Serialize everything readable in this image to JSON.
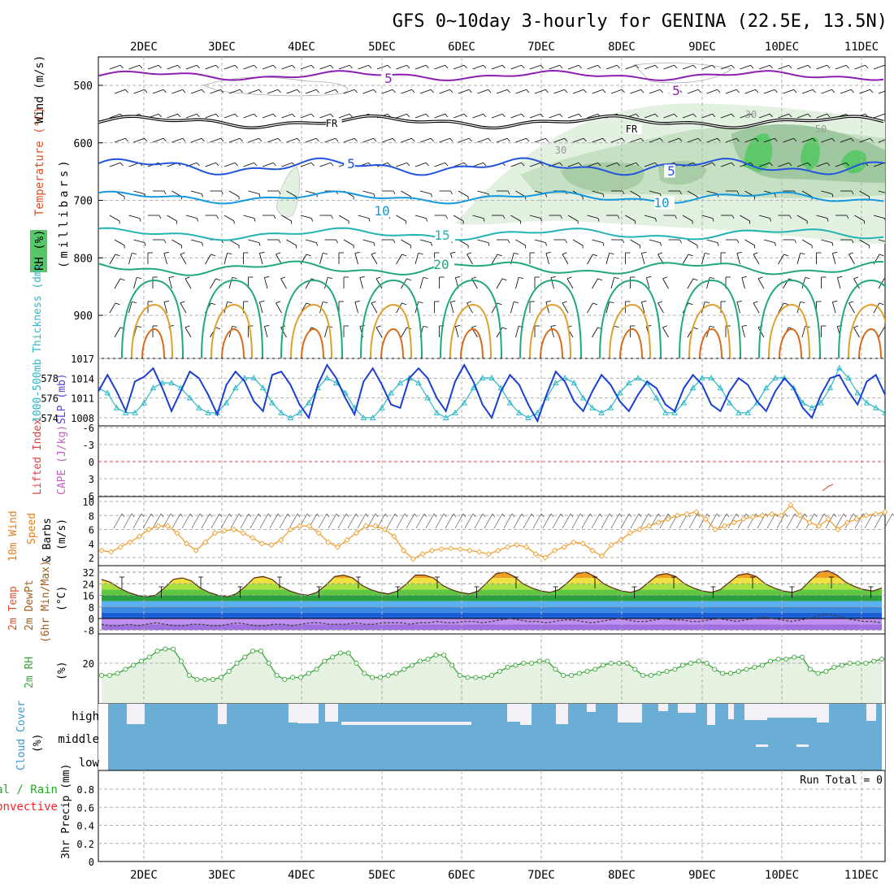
{
  "title": "GFS 0~10day 3-hourly for GENINA (22.5E, 13.5N)",
  "dates": [
    "2DEC",
    "3DEC",
    "4DEC",
    "5DEC",
    "6DEC",
    "7DEC",
    "8DEC",
    "9DEC",
    "10DEC",
    "11DEC"
  ],
  "colors": {
    "rh_green": "#56c766",
    "rh_light": "#dcefdc",
    "rh_mid": "#b8d8b8",
    "temp_purple": "#8a1fb0",
    "temp_black": "#000000",
    "temp_blue": "#2255dd",
    "temp_cyan": "#1499e0",
    "temp_teal": "#22b4b4",
    "temp_green": "#22a87c",
    "temp_orange": "#e0a030",
    "temp_darkorange": "#d86a1a",
    "slp": "#1b3fcf",
    "thickness": "#2ab8c8",
    "wind": "#f0a030",
    "rh2m": "#3aa83a",
    "cloud": "#6aaed6",
    "precip_total": "#22aa22",
    "precip_conv": "#ff2020"
  },
  "panels": {
    "upper": {
      "ylabel_wind": "Wind (m/s)",
      "ylabel_temp": "Temperature (°C)",
      "ylabel_rh": "RH (%)",
      "ylabel_p": "(millibars)",
      "yticks": [
        "500",
        "600",
        "700",
        "800",
        "900"
      ],
      "contour_labels": [
        {
          "text": "5",
          "color": "#8a1fb0"
        },
        {
          "text": "5",
          "color": "#8a1fb0"
        },
        {
          "text": "FR",
          "color": "#000000"
        },
        {
          "text": "FR",
          "color": "#000000"
        },
        {
          "text": "5",
          "color": "#2255dd"
        },
        {
          "text": "5",
          "color": "#2255dd"
        },
        {
          "text": "10",
          "color": "#1499e0"
        },
        {
          "text": "10",
          "color": "#1499e0"
        },
        {
          "text": "15",
          "color": "#22b4b4"
        },
        {
          "text": "20",
          "color": "#22a87c"
        },
        {
          "text": "30",
          "color": "#999999"
        },
        {
          "text": "30",
          "color": "#999999"
        },
        {
          "text": "50",
          "color": "#999999"
        }
      ]
    },
    "slp": {
      "ylabel_left": "1000-500mb Thickness (dm)",
      "ylabel_right": "SLP (mb)",
      "left_ticks": [
        "578",
        "576",
        "574"
      ],
      "right_ticks": [
        "1017",
        "1014",
        "1011",
        "1008"
      ]
    },
    "cape": {
      "ylabel_li": "Lifted Index",
      "ylabel_cape": "CAPE (J/kg)",
      "yticks": [
        "-6",
        "-3",
        "0",
        "3",
        "6"
      ]
    },
    "wind10": {
      "ylabel1": "10m Wind",
      "ylabel2": "Speed",
      "ylabel3": "& Barbs",
      "unit": "(m/s)",
      "yticks": [
        "10",
        "8",
        "6",
        "4",
        "2"
      ]
    },
    "temp2m": {
      "ylabel1": "2m Temp",
      "ylabel2": "2m DewPt",
      "ylabel3": "(6hr Min/Max)",
      "unit": "(°C)",
      "yticks": [
        "32",
        "24",
        "16",
        "8",
        "0",
        "-8"
      ]
    },
    "rh2m": {
      "ylabel": "2m RH",
      "unit": "(%)",
      "yticks": [
        "20"
      ]
    },
    "cloud": {
      "ylabel": "Cloud Cover",
      "unit": "(%)",
      "levels": [
        "high",
        "middle",
        "low"
      ]
    },
    "precip": {
      "ylabel_total": "Total / Rain",
      "ylabel_conv": "Convective",
      "ylabel": "3hr Precip (mm)",
      "yticks": [
        "0.8",
        "0.6",
        "0.4",
        "0.2",
        "0"
      ],
      "run_total": "Run Total = 0"
    }
  },
  "chart_data": [
    {
      "type": "line",
      "title": "1000-500mb Thickness (dm) / SLP (mb)",
      "series": [
        {
          "name": "SLP (mb)",
          "values": [
            1012,
            1014.5,
            1012,
            1009,
            1013.5,
            1014.2,
            1015.5,
            1012.5,
            1009,
            1012,
            1015,
            1014,
            1011.5,
            1008.5,
            1013,
            1015,
            1013.5,
            1010.5,
            1009,
            1014.5,
            1015,
            1013,
            1010,
            1008,
            1013,
            1016,
            1014,
            1011,
            1008.5,
            1013.5,
            1015.5,
            1013,
            1010,
            1009.5,
            1014,
            1015.5,
            1014,
            1011,
            1009,
            1013.5,
            1016,
            1013.5,
            1010,
            1008,
            1012,
            1014.5,
            1013,
            1010,
            1007.5,
            1011.5,
            1015,
            1013.5,
            1010.5,
            1009,
            1012,
            1014.5,
            1013,
            1010.5,
            1009,
            1011.5,
            1013.5,
            1012.5,
            1010,
            1009,
            1012.5,
            1014.5,
            1013,
            1010,
            1009,
            1012,
            1014,
            1013,
            1010.5,
            1009,
            1012,
            1014,
            1012.5,
            1009.5,
            1008,
            1011.5,
            1014,
            1014.5,
            1012,
            1010,
            1013.5,
            1014.5,
            1011.5
          ]
        },
        {
          "name": "Thickness (dm)",
          "values": [
            577,
            576.5,
            575,
            574.5,
            574.5,
            575.5,
            577,
            577.5,
            577.5,
            577,
            576,
            575,
            574.5,
            574.5,
            575.5,
            577,
            578,
            578,
            577,
            575.5,
            574.5,
            574,
            574.5,
            575.5,
            577,
            578,
            577.5,
            576.5,
            575,
            574,
            574,
            575,
            576.5,
            577.5,
            578,
            577.5,
            576,
            574.5,
            574,
            574.5,
            575.5,
            577,
            578,
            578,
            577,
            575.5,
            574.5,
            574,
            574.5,
            576,
            577.5,
            578,
            577.5,
            576,
            575,
            574.5,
            575,
            576.5,
            577.5,
            578,
            577.5,
            576,
            574.5,
            574.5,
            575.5,
            577,
            578,
            578,
            577,
            575.5,
            574.5,
            574.5,
            575.5,
            577,
            578,
            578,
            577,
            575.5,
            575,
            575.5,
            577,
            579,
            578,
            576.5,
            575.5,
            575,
            574.5
          ]
        }
      ]
    },
    {
      "type": "line",
      "title": "10m Wind Speed (m/s)",
      "series": [
        {
          "name": "Speed",
          "values": [
            3,
            2.8,
            3.5,
            4.2,
            5,
            6,
            6.5,
            6.5,
            5.5,
            4,
            3,
            4.2,
            5.5,
            5.8,
            6,
            5.5,
            4.8,
            4,
            3.8,
            4.5,
            6,
            6.5,
            6.5,
            5.5,
            4.2,
            3.5,
            4.5,
            5.5,
            6.5,
            6.5,
            6,
            5,
            3,
            1.8,
            2.5,
            3,
            3.2,
            3.3,
            3.2,
            3,
            2.8,
            2.5,
            3,
            3.5,
            3.8,
            3.5,
            2.5,
            2,
            3,
            3.5,
            4.2,
            4,
            3,
            2.2,
            3.8,
            4.5,
            5.5,
            6,
            6.5,
            7,
            7.5,
            8,
            8.2,
            8.5,
            7.5,
            6,
            6.5,
            7,
            7.5,
            7.8,
            8,
            8.2,
            8,
            9.5,
            8,
            7,
            6.5,
            7.5,
            6,
            7,
            7.5,
            8,
            8.2,
            8.5
          ]
        }
      ]
    },
    {
      "type": "area",
      "title": "2m Temp (°C)",
      "series": [
        {
          "name": "2m Temp",
          "values": [
            27,
            25,
            21,
            18,
            16,
            15,
            16,
            21,
            27,
            28,
            26,
            21,
            18,
            16,
            15,
            17,
            22,
            28,
            29,
            27,
            22,
            19,
            17,
            16,
            18,
            23,
            29,
            30,
            28,
            23,
            20,
            18,
            17,
            19,
            24,
            30,
            30,
            28,
            23,
            20,
            18,
            17,
            19,
            25,
            31,
            32,
            29,
            24,
            21,
            19,
            18,
            20,
            25,
            31,
            32,
            29,
            24,
            21,
            19,
            18,
            20,
            25,
            30,
            31,
            29,
            24,
            21,
            19,
            18,
            20,
            25,
            30,
            31,
            29,
            24,
            21,
            19,
            18,
            20,
            26,
            32,
            33,
            30,
            25,
            22,
            20,
            19,
            21
          ]
        },
        {
          "name": "2m DewPt",
          "values": [
            -4,
            -5,
            -5,
            -4,
            -5,
            -4,
            -3,
            -4,
            -5,
            -5,
            -4,
            -4,
            -5,
            -5,
            -4,
            -3,
            -4,
            -5,
            -5,
            -4,
            -4,
            -5,
            -4,
            -3,
            -3,
            -4,
            -4,
            -4,
            -3,
            -4,
            -4,
            -3,
            -3,
            -3,
            -4,
            -3,
            -3,
            -2,
            -3,
            -3,
            -2,
            -2,
            -3,
            -2,
            -1,
            0,
            -1,
            -2,
            -2,
            -3,
            -2,
            -1,
            -1,
            -2,
            -3,
            -2,
            -1,
            0,
            -1,
            -2,
            -2,
            -1,
            0,
            -1,
            -1,
            -2,
            -2,
            -1,
            0,
            -1,
            -2,
            -1,
            0,
            1,
            0,
            -1,
            -2,
            -1,
            0,
            2,
            3,
            2,
            0,
            -1,
            -2,
            -2,
            -3
          ]
        }
      ]
    },
    {
      "type": "area",
      "title": "2m RH (%)",
      "series": [
        {
          "name": "2m RH",
          "values": [
            14,
            14,
            15,
            17,
            19,
            21,
            23,
            26,
            27,
            27,
            21,
            14,
            12,
            12,
            12,
            13,
            16,
            20,
            23,
            26,
            26,
            20,
            14,
            12,
            13,
            13,
            15,
            17,
            21,
            23,
            25,
            25,
            20,
            15,
            13,
            13,
            14,
            15,
            17,
            19,
            21,
            22,
            24,
            24,
            19,
            14,
            13,
            13,
            13,
            14,
            16,
            18,
            19,
            20,
            20,
            21,
            21,
            17,
            14,
            14,
            15,
            16,
            17,
            19,
            20,
            20,
            20,
            17,
            14,
            14,
            15,
            16,
            17,
            19,
            20,
            21,
            20,
            17,
            15,
            15,
            16,
            17,
            18,
            19,
            21,
            22,
            22,
            23,
            23,
            17,
            15,
            16,
            18,
            19,
            20,
            20,
            20,
            21,
            22
          ]
        }
      ]
    },
    {
      "type": "line",
      "title": "3hr Precip (mm)",
      "xlabel": "",
      "ylabel": "3hr Precip (mm)",
      "ylim": [
        0,
        0.9
      ],
      "series": [
        {
          "name": "Total / Rain",
          "values": [
            0
          ]
        },
        {
          "name": "Convective",
          "values": [
            0
          ]
        }
      ]
    }
  ]
}
